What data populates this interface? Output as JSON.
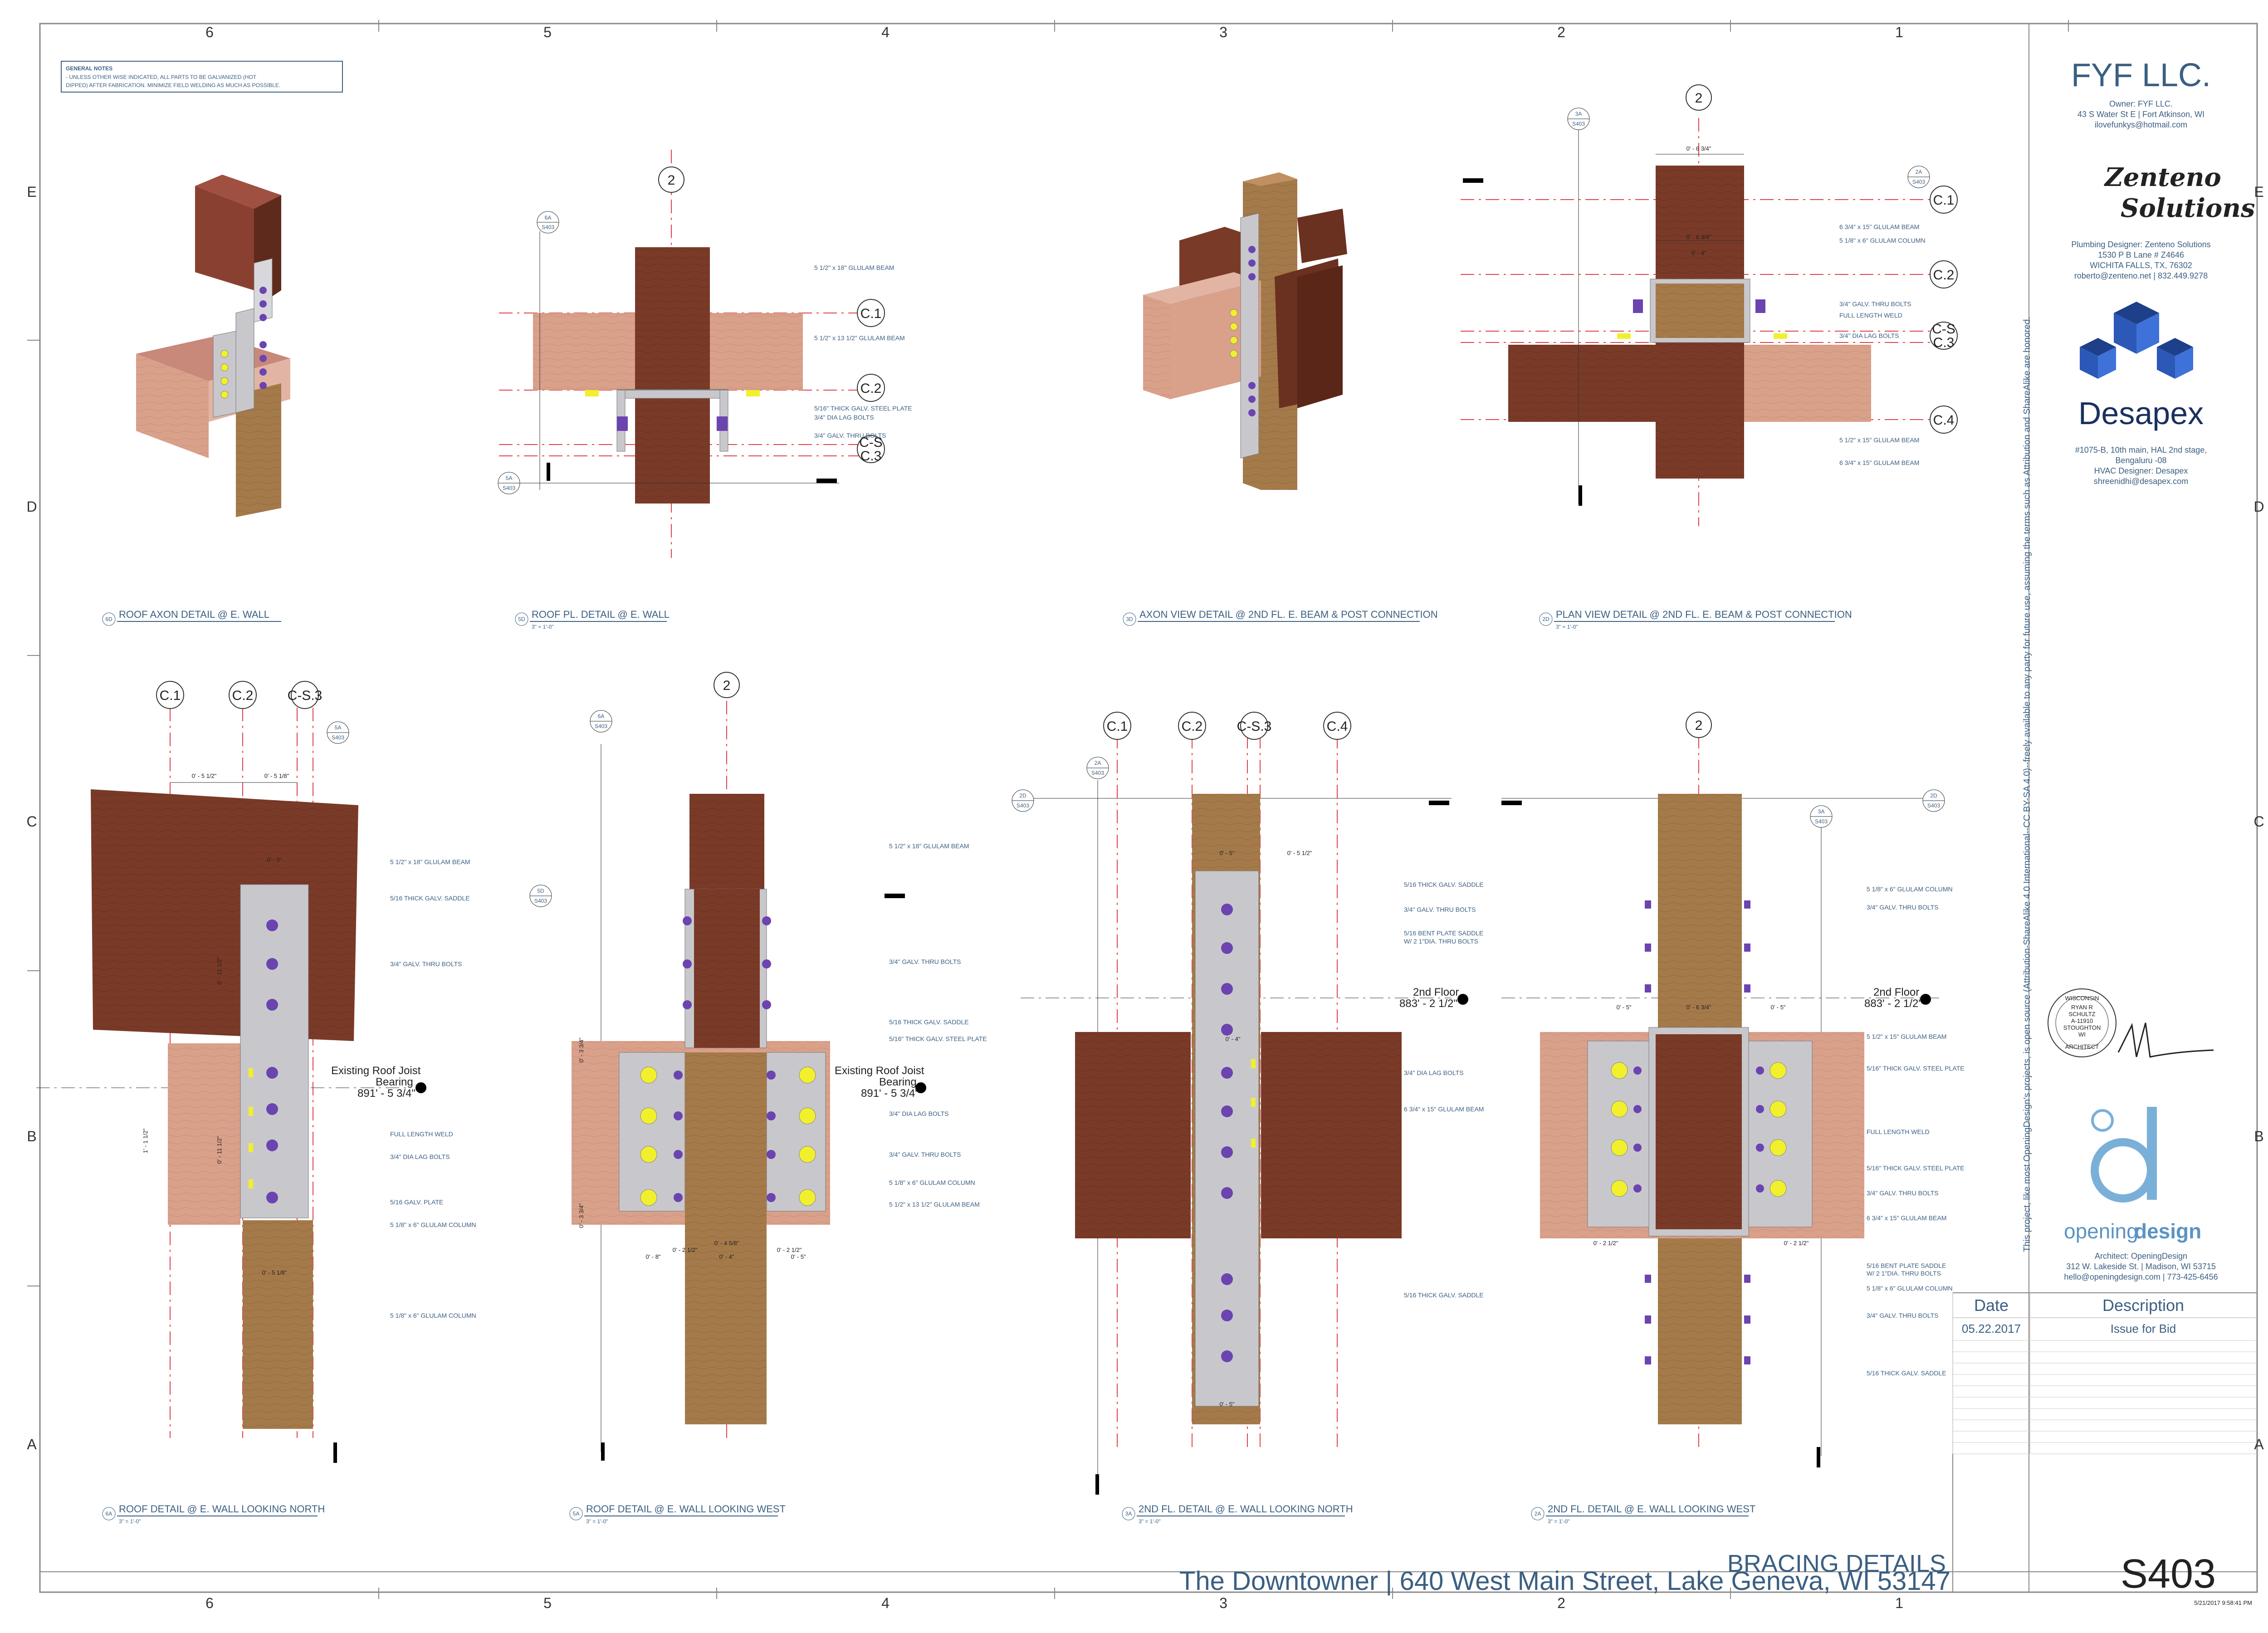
{
  "general_notes": {
    "title": "GENERAL NOTES",
    "text_1": "- UNLESS OTHER WISE INDICATED, ALL PARTS TO BE GALVANIZED (HOT",
    "text_2": "DIPPED) AFTER FABRICATION. MINIMIZE FIELD WELDING AS MUCH AS POSSIBLE."
  },
  "grid": {
    "columns": [
      "6",
      "5",
      "4",
      "3",
      "2",
      "1"
    ],
    "rows": [
      "E",
      "D",
      "C",
      "B",
      "A"
    ]
  },
  "details": [
    {
      "id": "6D",
      "title": "ROOF AXON DETAIL @ E. WALL",
      "scale": ""
    },
    {
      "id": "5D",
      "title": "ROOF PL. DETAIL @  E. WALL",
      "scale": "3\" = 1'-0\""
    },
    {
      "id": "3D",
      "title": "AXON VIEW DETAIL @ 2ND FL. E. BEAM & POST CONNECTION",
      "scale": ""
    },
    {
      "id": "2D",
      "title": "PLAN VIEW DETAIL @ 2ND FL. E. BEAM & POST CONNECTION",
      "scale": "3\" = 1'-0\""
    },
    {
      "id": "6A",
      "title": "ROOF DETAIL @ E. WALL LOOKING  NORTH",
      "scale": "3\" = 1'-0\""
    },
    {
      "id": "5A",
      "title": "ROOF DETAIL @  E. WALL LOOKING WEST",
      "scale": "3\" = 1'-0\""
    },
    {
      "id": "3A",
      "title": "2ND FL. DETAIL @ E. WALL LOOKING  NORTH",
      "scale": "3\" = 1'-0\""
    },
    {
      "id": "2A",
      "title": "2ND FL. DETAIL @ E. WALL LOOKING  WEST",
      "scale": "3\" = 1'-0\""
    }
  ],
  "bubbles": {
    "two": "2",
    "c1": "C.1",
    "c2": "C.2",
    "cs3": "C-S.3",
    "c4": "C.4",
    "cs": "C-S",
    "c3": "C.3"
  },
  "sheet_refs": {
    "ref_6a": "6A",
    "ref_5a": "5A",
    "ref_3a": "3A",
    "ref_2a": "2A",
    "ref_2d": "2D",
    "ref_5d": "5D",
    "sheet": "S403"
  },
  "callouts": {
    "glulam_beam_18": "5 1/2\" x 18\" GLULAM BEAM",
    "glulam_beam_13": "5 1/2\" x 13 1/2\" GLULAM BEAM",
    "saddle_5_16": "5/16 THICK GALV. SADDLE",
    "steel_plate": "5/16\" THICK GALV. STEEL PLATE",
    "lag_bolts": "3/4\" DIA LAG BOLTS",
    "thru_bolts": "3/4\" GALV. THRU BOLTS",
    "thru_bolts_2": "3/4\" GALV. THRU BOLTS",
    "glulam_15": "6 3/4\" x 15\" GLULAM BEAM",
    "glulam_col_6": "5 1/8\" x 6\" GLULAM COLUMN",
    "full_weld": "FULL LENGTH WELD",
    "galv_plate": "5/16 GALV. PLATE",
    "bent_plate_1": "5/16 BENT PLATE SADDLE",
    "bent_plate_2": "W/ 2 1\"DIA. THRU BOLTS",
    "glulam_1_2_15": "5 1/2\" x 15\" GLULAM BEAM"
  },
  "levels": {
    "roof_joist_1": "Existing Roof Joist",
    "roof_joist_2": "Bearing",
    "roof_joist_elev": "891' - 5 3/4\"",
    "second_floor": "2nd Floor",
    "second_floor_elev": "883' - 2 1/2\""
  },
  "dims": {
    "d_0_5_1_2": "0' - 5 1/2\"",
    "d_0_5_1_8": "0' - 5 1/8\"",
    "d_0_5": "0' - 5\"",
    "d_0_6_3_4": "0' - 6 3/4\"",
    "d_0_2_1_2": "0' - 2 1/2\"",
    "d_0_4": "0' - 4\"",
    "d_0_4_5_8": "0' - 4 5/8\"",
    "d_0_3": "0' - 3\"",
    "d_1_1_1_2": "1' - 1 1/2\"",
    "d_0_11_1_2": "0' - 11 1/2\"",
    "d_0_8": "0' - 8\"",
    "d_0_3_3_4": "0' - 3 3/4\""
  },
  "title_block": {
    "owner_name": "FYF LLC.",
    "owner_line1": "Owner: FYF LLC.",
    "owner_line2": "43 S Water St E  |  Fort Atkinson, WI",
    "owner_line3": "ilovefunkys@hotmail.com",
    "plumb_logo_1": "Zenteno",
    "plumb_logo_2": "Solutions",
    "plumb_line1": "Plumbing Designer: Zenteno Solutions",
    "plumb_line2": "1530 P B Lane # Z4646",
    "plumb_line3": "WICHITA FALLS, TX, 76302",
    "plumb_line4": "roberto@zenteno.net | 832.449.9278",
    "hvac_logo": "Desapex",
    "hvac_line1": "#1075-B, 10th main, HAL 2nd stage,",
    "hvac_line2": "Bengaluru -08",
    "hvac_line3": "HVAC Designer: Desapex",
    "hvac_line4": "shreenidhi@desapex.com",
    "arch_logo_1": "opening",
    "arch_logo_2": "design",
    "arch_line1": "Architect: OpeningDesign",
    "arch_line2": "312 W. Lakeside St.  |  Madison, WI 53715",
    "arch_line3": "hello@openingdesign.com  |  773-425-6456",
    "license_text": "This project, like most OpeningDesign's projects, is open source (Attribution-ShareAlike 4.0 International--CC BY-SA 4.0)--freely available to any party for future use, assuming the terms such as Attribution and ShareAlike are honored.",
    "seal_1": "WISCONSIN",
    "seal_2": "RYAN R",
    "seal_3": "SCHULTZ",
    "seal_4": "A-11910",
    "seal_5": "STOUGHTON",
    "seal_6": "WI",
    "seal_7": "ARCHITECT",
    "rev_date_header": "Date",
    "rev_desc_header": "Description",
    "rev_date": "05.22.2017",
    "rev_desc": "Issue for Bid",
    "sheet_title": "BRACING DETAILS",
    "project": "The Downtowner  |  640 West Main Street, Lake Geneva, WI 53147",
    "sheet_number": "S403",
    "timestamp": "5/21/2017 9:58:41 PM"
  },
  "colors": {
    "dark_wood": "#7a3a28",
    "light_wood": "#d9a08a",
    "column_wood": "#a57a4a",
    "steel": "#c8c8cc",
    "bolt_purple": "#6b44b0",
    "bolt_yellow": "#f2ef2c",
    "grid_red": "#e0404a",
    "text_blue": "#3b5f82"
  }
}
